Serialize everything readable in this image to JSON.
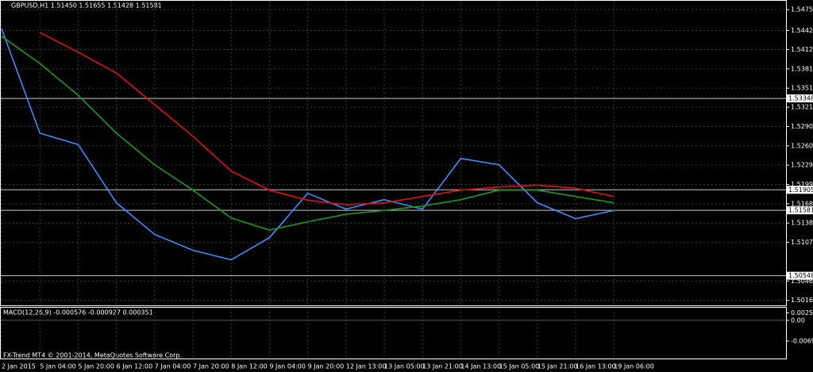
{
  "chart_data": {
    "type": "line",
    "title": "GBPUSD,H1  1.51450 1.51655 1.51428 1.51581",
    "footer": "FX-Trend MT4 © 2001-2014, MetaQuotes Software Corp.",
    "categories": [
      "2 Jan 2015",
      "5 Jan 04:00",
      "5 Jan 20:00",
      "6 Jan 12:00",
      "7 Jan 04:00",
      "7 Jan 20:00",
      "8 Jan 12:00",
      "9 Jan 04:00",
      "9 Jan 20:00",
      "12 Jan 13:00",
      "13 Jan 05:00",
      "13 Jan 21:00",
      "14 Jan 13:00",
      "15 Jan 05:00",
      "15 Jan 21:00",
      "16 Jan 13:00",
      "19 Jan 06:00"
    ],
    "series": [
      {
        "color": "#3d8cff",
        "values": [
          1.5445,
          1.528,
          1.5262,
          1.517,
          1.512,
          1.5095,
          1.508,
          1.5115,
          1.5185,
          1.516,
          1.5175,
          1.516,
          1.524,
          1.523,
          1.517,
          1.5145,
          1.5158
        ]
      },
      {
        "color": "#e01010",
        "values": [
          null,
          1.5439,
          1.5408,
          1.5375,
          1.5325,
          1.5275,
          1.522,
          1.519,
          1.5174,
          1.5167,
          1.517,
          1.518,
          1.519,
          1.5195,
          1.5198,
          1.5193,
          1.518
        ]
      },
      {
        "color": "#1a9a1a",
        "values": [
          1.5433,
          1.539,
          1.534,
          1.528,
          1.523,
          1.519,
          1.5146,
          1.5127,
          1.514,
          1.5152,
          1.5158,
          1.5165,
          1.5175,
          1.519,
          1.519,
          1.518,
          1.517
        ]
      }
    ],
    "hlines": [
      1.53348,
      1.51905,
      1.51581,
      1.50548
    ],
    "ylim": [
      1.5008,
      1.5489
    ],
    "yticks": [
      {
        "value": 1.5475,
        "label": "1.54750"
      },
      {
        "value": 1.5442,
        "label": "1.54420"
      },
      {
        "value": 1.5412,
        "label": "1.54120"
      },
      1.53815,
      {
        "value": 1.5351,
        "label": "1.53510"
      },
      {
        "value": 1.5321,
        "label": "1.53210"
      },
      1.52905,
      {
        "value": 1.526,
        "label": "1.52600"
      },
      1.52295,
      {
        "value": 1.5199,
        "label": "1.51990"
      },
      1.51685,
      {
        "value": 1.5138,
        "label": "1.51380"
      },
      1.51077,
      1.50465,
      {
        "value": 1.5016,
        "label": "1.50160"
      }
    ],
    "grid": true,
    "macd": {
      "title": "MACD(12,26,9) -0.000576 -0.000927 0.000351",
      "ylim": [
        -0.0128,
        0.0042
      ],
      "yticks": [
        0.002535,
        {
          "value": 0,
          "label": "0.00"
        },
        -0.006955
      ]
    }
  }
}
